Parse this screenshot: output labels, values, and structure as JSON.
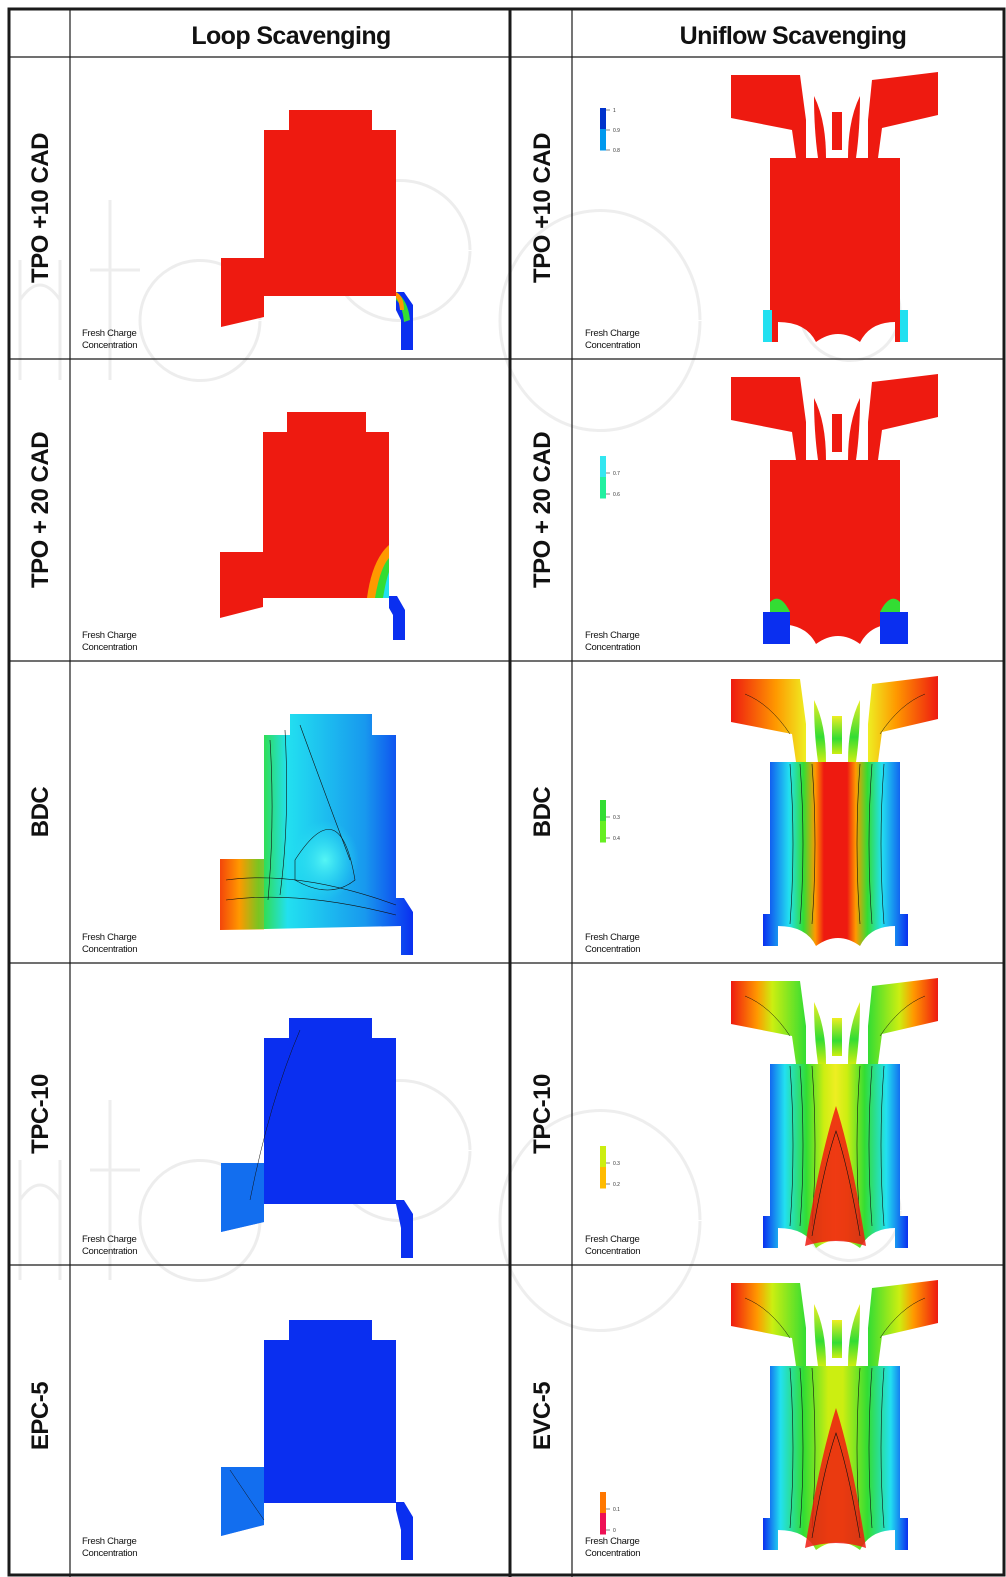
{
  "columns": {
    "loop": "Loop Scavenging",
    "uniflow": "Uniflow Scavenging"
  },
  "rows": [
    {
      "loop_label": "TPO +10 CAD",
      "uniflow_label": "TPO +10 CAD",
      "ticks": [
        "1",
        "0.9",
        "0.8"
      ],
      "legend_colors": [
        "#0033cc",
        "#0099ee"
      ],
      "loop_fill": "red",
      "uniflow_fill": "red"
    },
    {
      "loop_label": "TPO + 20 CAD",
      "uniflow_label": "TPO + 20 CAD",
      "ticks": [
        "0.7",
        "0.6"
      ],
      "legend_colors": [
        "#33e6f0",
        "#22f0a0"
      ],
      "loop_fill": "red",
      "uniflow_fill": "red"
    },
    {
      "loop_label": "BDC",
      "uniflow_label": "BDC",
      "ticks": [
        "0.3",
        "0.4"
      ],
      "legend_colors": [
        "#33dd33",
        "#66ee22"
      ],
      "loop_fill": "mixed",
      "uniflow_fill": "mixed"
    },
    {
      "loop_label": "TPC-10",
      "uniflow_label": "TPC-10",
      "ticks": [
        "0.3",
        "0.2"
      ],
      "legend_colors": [
        "#ccee11",
        "#ffbb00"
      ],
      "loop_fill": "blue",
      "uniflow_fill": "mixed"
    },
    {
      "loop_label": "EPC-5",
      "uniflow_label": "EVC-5",
      "ticks": [
        "0.1",
        "0"
      ],
      "legend_colors": [
        "#ff7700",
        "#ee1155"
      ],
      "loop_fill": "blue",
      "uniflow_fill": "mixed"
    }
  ],
  "caption": {
    "line1": "Fresh Charge",
    "line2": "Concentration"
  },
  "colors": {
    "red": "#ee1a10",
    "blue": "#0a2ff0",
    "cyan": "#22e0f0",
    "green": "#33dd33",
    "yellow": "#eeee22",
    "orange": "#ff9900",
    "border": "#1a1a1a"
  }
}
